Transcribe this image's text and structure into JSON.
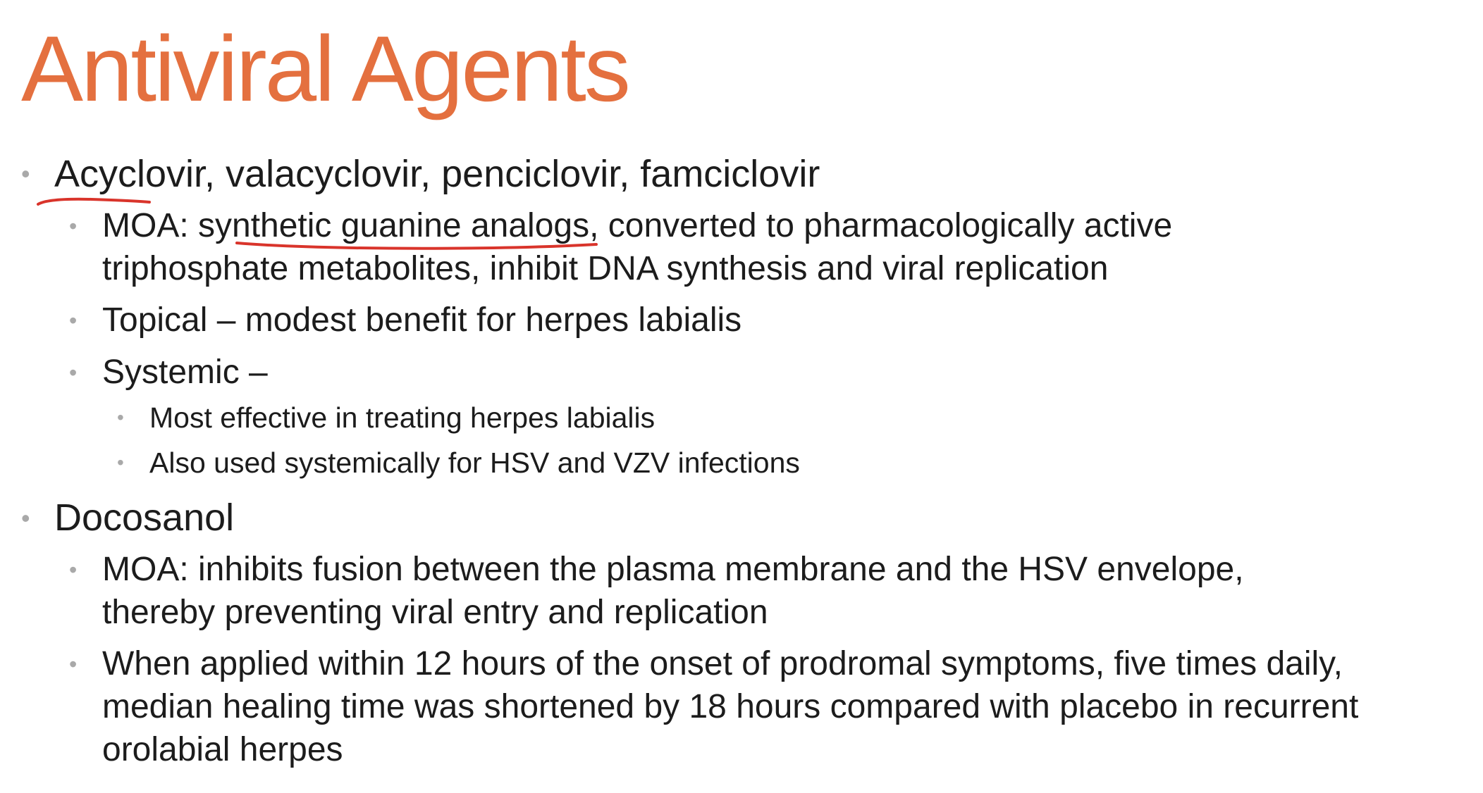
{
  "slide": {
    "title": "Antiviral Agents",
    "bullet_glyph": "•",
    "items": [
      {
        "text": "Acyclovir, valacyclovir, penciclovir, famciclovir",
        "children": [
          {
            "lines": [
              "MOA: synthetic guanine analogs, converted to pharmacologically active",
              "triphosphate metabolites, inhibit DNA synthesis and viral replication"
            ]
          },
          {
            "lines": [
              "Topical – modest benefit for herpes labialis"
            ]
          },
          {
            "lines": [
              "Systemic –"
            ],
            "children": [
              "Most effective in treating herpes labialis",
              "Also used systemically for HSV and VZV infections"
            ]
          }
        ]
      },
      {
        "text": "Docosanol",
        "children": [
          {
            "lines": [
              "MOA: inhibits fusion between the plasma membrane and the HSV envelope,",
              "thereby preventing viral entry and replication"
            ]
          },
          {
            "lines": [
              "When applied within 12 hours of the onset of prodromal symptoms, five times daily,",
              "median healing time was shortened by 18 hours compared with placebo in recurrent",
              "orolabial herpes"
            ]
          }
        ]
      }
    ]
  },
  "colors": {
    "title": "#e4703f",
    "text": "#1c1c1c",
    "bullet": "#a9a9a9",
    "annotation": "#d9342b"
  }
}
